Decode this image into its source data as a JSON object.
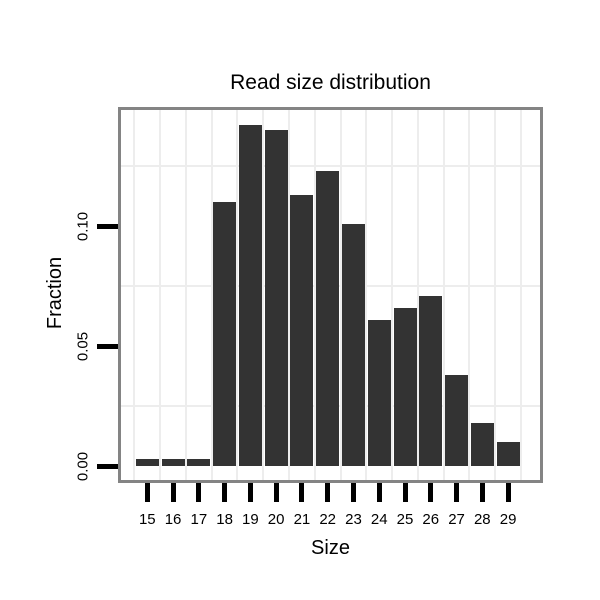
{
  "chart_data": {
    "type": "bar",
    "title": "Read size distribution",
    "xlabel": "Size",
    "ylabel": "Fraction",
    "categories": [
      "15",
      "16",
      "17",
      "18",
      "19",
      "20",
      "21",
      "22",
      "23",
      "24",
      "25",
      "26",
      "27",
      "28",
      "29"
    ],
    "values": [
      0.003,
      0.003,
      0.003,
      0.11,
      0.142,
      0.14,
      0.113,
      0.123,
      0.101,
      0.061,
      0.066,
      0.071,
      0.038,
      0.018,
      0.01
    ],
    "y_ticks": [
      {
        "value": 0.0,
        "label": "0.00"
      },
      {
        "value": 0.05,
        "label": "0.05"
      },
      {
        "value": 0.1,
        "label": "0.10"
      }
    ],
    "minor_gridlines_y": [
      0.025,
      0.075,
      0.125
    ],
    "ylim": [
      -0.006,
      0.148
    ],
    "grid": true,
    "legend": "none",
    "colors": {
      "bar": "#333333",
      "panel_border": "#848484",
      "gridline": "#ededed",
      "background": "#ffffff",
      "text": "#000000",
      "tick": "#000000"
    }
  }
}
